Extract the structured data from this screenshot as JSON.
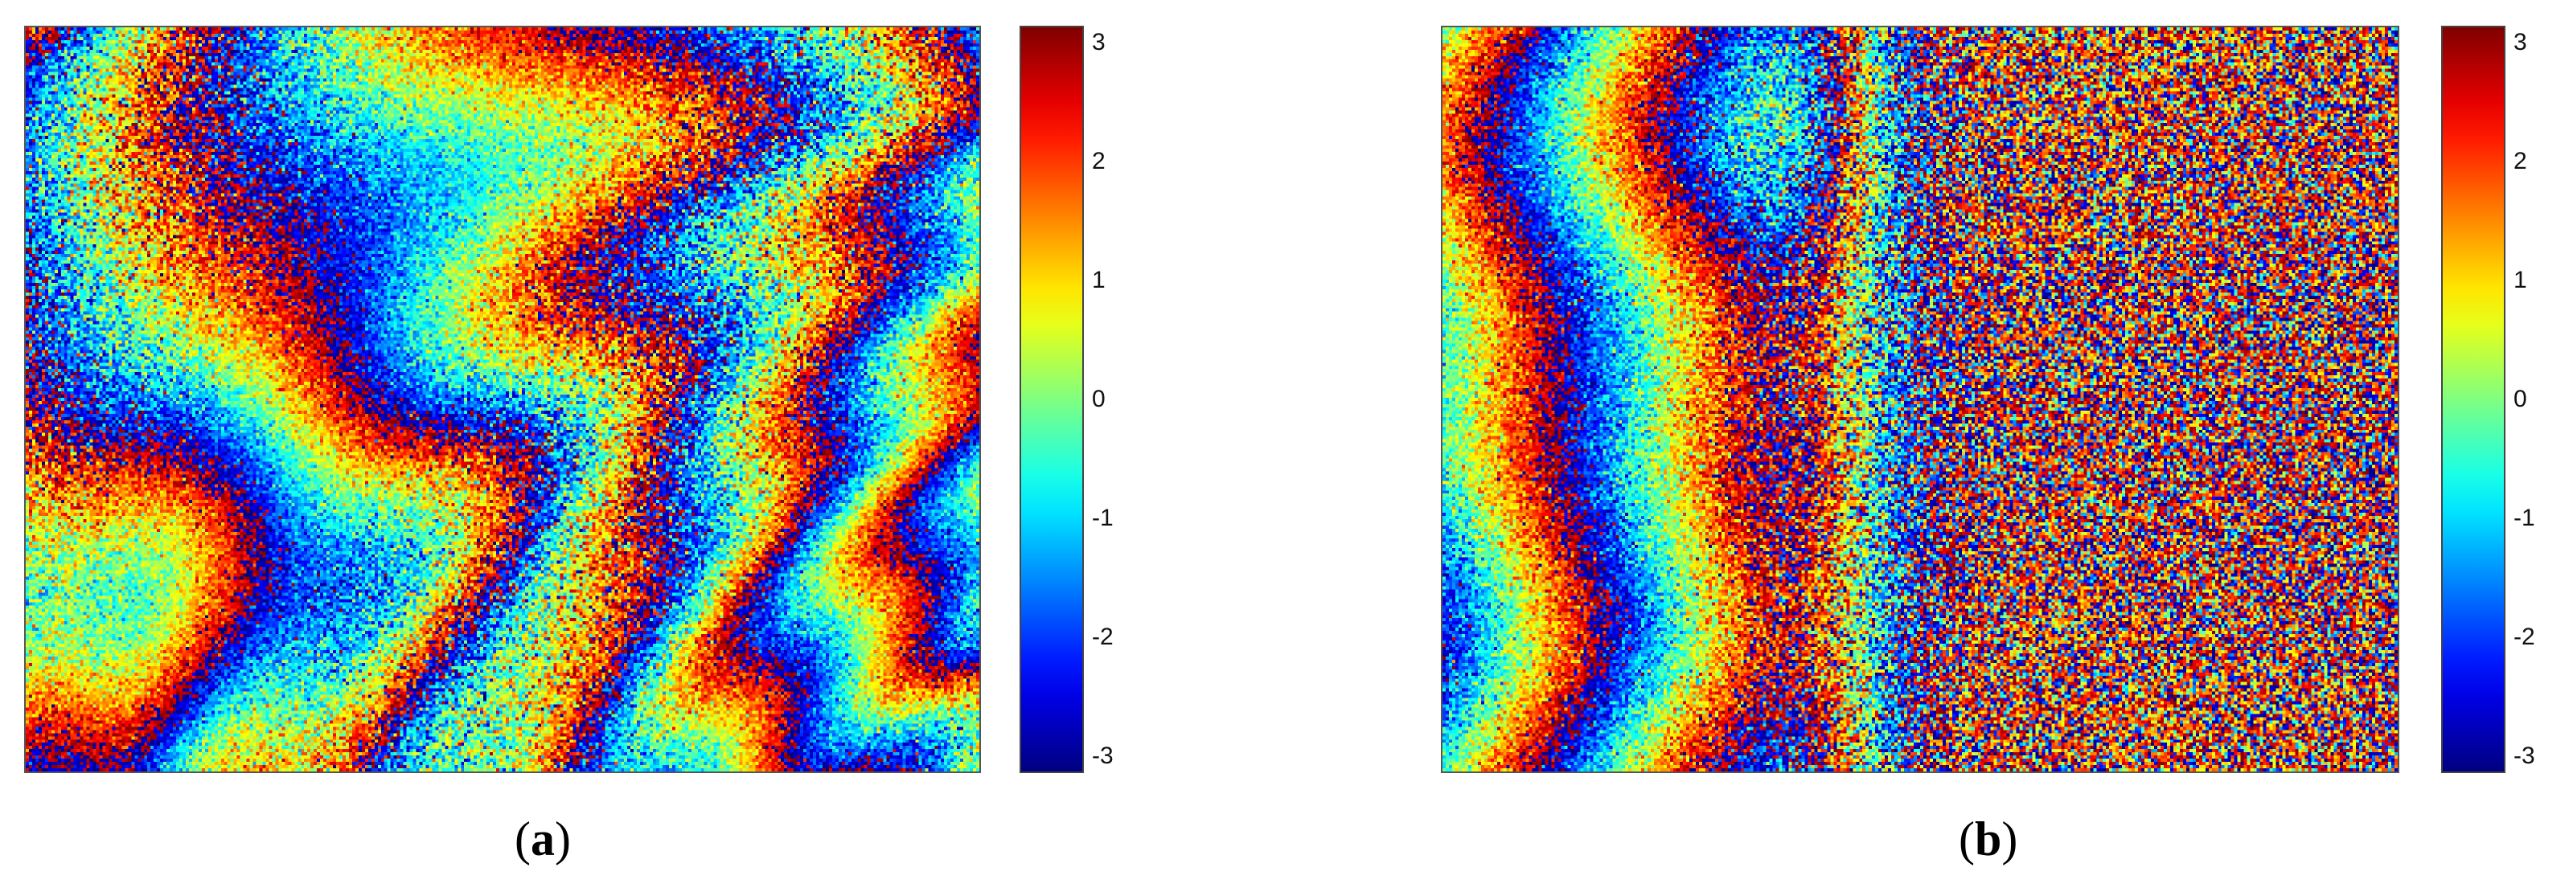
{
  "chart_data": [
    {
      "type": "heatmap",
      "panel_label": "a",
      "colormap": "jet",
      "colorbar": {
        "range": [
          -3.14,
          3.14
        ],
        "ticks": [
          3,
          2,
          1,
          0,
          -1,
          -2,
          -3
        ],
        "tick_labels": [
          "3",
          "2",
          "1",
          "0",
          "-1",
          "-2",
          "-3"
        ]
      },
      "pattern": "wrapped interferometric phase with noise, curved vertical fringes across the full field"
    },
    {
      "type": "heatmap",
      "panel_label": "b",
      "colormap": "jet",
      "colorbar": {
        "range": [
          -3.14,
          3.14
        ],
        "ticks": [
          3,
          2,
          1,
          0,
          -1,
          -2,
          -3
        ],
        "tick_labels": [
          "3",
          "2",
          "1",
          "0",
          "-1",
          "-2",
          "-3"
        ]
      },
      "pattern": "wrapped phase with noise, fringes dense on the left and a noisy red-dominant region on the right"
    }
  ],
  "captions": {
    "a": {
      "open": "(",
      "letter": "a",
      "close": ")"
    },
    "b": {
      "open": "(",
      "letter": "b",
      "close": ")"
    }
  }
}
